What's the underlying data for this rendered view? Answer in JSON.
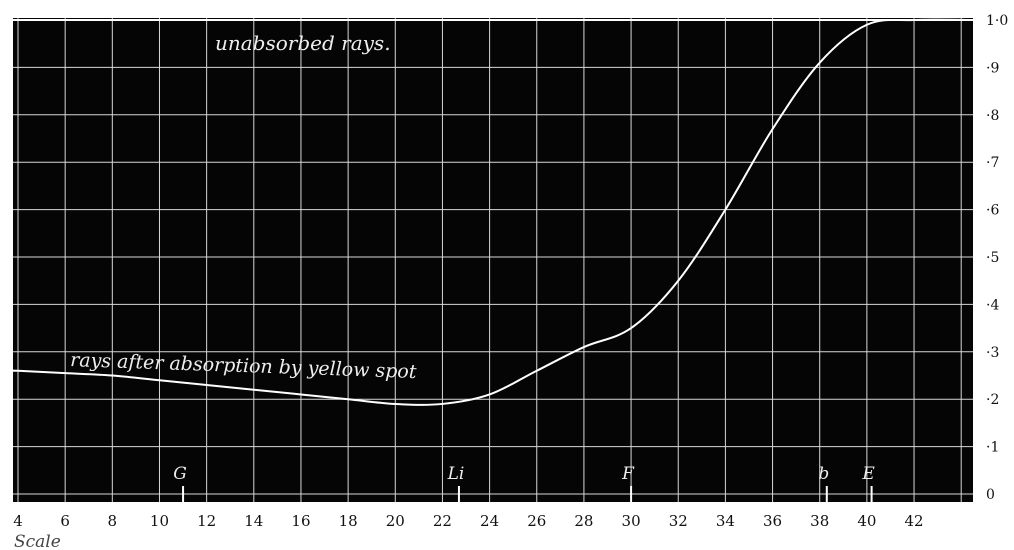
{
  "chart_data": {
    "type": "line",
    "title": "",
    "xlabel": "Scale",
    "ylabel": "",
    "xlim": [
      4,
      45
    ],
    "ylim": [
      0,
      1.0
    ],
    "grid": true,
    "x_ticks": [
      "4",
      "6",
      "8",
      "10",
      "12",
      "14",
      "16",
      "18",
      "20",
      "22",
      "24",
      "26",
      "28",
      "30",
      "32",
      "34",
      "36",
      "38",
      "40",
      "42"
    ],
    "y_ticks": [
      "0",
      "·1",
      "·2",
      "·3",
      "·4",
      "·5",
      "·6",
      "·7",
      "·8",
      "·9",
      "1·0"
    ],
    "series": [
      {
        "name": "rays after absorption by yellow spot",
        "x": [
          4,
          6,
          8,
          10,
          12,
          14,
          16,
          18,
          20,
          22,
          24,
          26,
          28,
          30,
          32,
          34,
          36,
          38,
          40,
          42
        ],
        "y": [
          0.26,
          0.255,
          0.25,
          0.24,
          0.23,
          0.22,
          0.21,
          0.2,
          0.19,
          0.19,
          0.21,
          0.26,
          0.31,
          0.35,
          0.45,
          0.6,
          0.77,
          0.91,
          0.99,
          1.0
        ]
      }
    ],
    "annotations": [
      {
        "text": "unabsorbed rays.",
        "note": "upper edge line at 1·0"
      },
      {
        "text": "rays after absorption by yellow spot",
        "note": "label on lower curve"
      }
    ],
    "line_markers": [
      {
        "label": "G",
        "x": 11
      },
      {
        "label": "Li",
        "x": 22.7
      },
      {
        "label": "F",
        "x": 30
      },
      {
        "label": "b",
        "x": 38.3
      },
      {
        "label": "E",
        "x": 40.2
      }
    ],
    "colors": {
      "background": "#000000",
      "grid": "#d8d8d8",
      "curve": "#ffffff",
      "text": "#111111"
    }
  }
}
